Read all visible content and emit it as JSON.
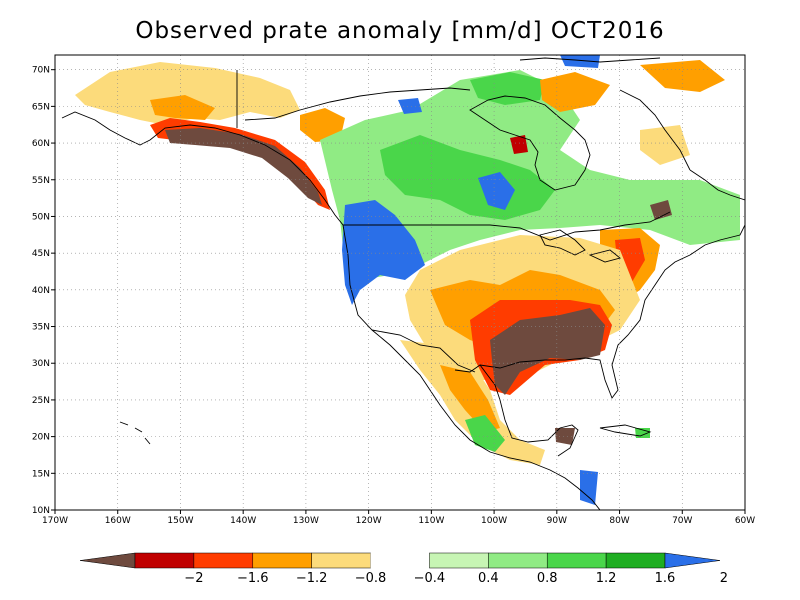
{
  "title": "Observed prate anomaly [mm/d] OCT2016",
  "map": {
    "lon_labels": [
      "170W",
      "160W",
      "150W",
      "140W",
      "130W",
      "120W",
      "110W",
      "100W",
      "90W",
      "80W",
      "70W",
      "60W"
    ],
    "lat_labels": [
      "70N",
      "65N",
      "60N",
      "55N",
      "50N",
      "45N",
      "40N",
      "35N",
      "30N",
      "25N",
      "20N",
      "15N",
      "10N"
    ],
    "lon_range": [
      -170,
      -60
    ],
    "lat_range": [
      10,
      72
    ],
    "grid": "dotted"
  },
  "colorbar": {
    "labels": [
      "−2",
      "−1.6",
      "−1.2",
      "−0.8",
      "−0.4",
      "0.4",
      "0.8",
      "1.2",
      "1.6",
      "2"
    ],
    "colors": [
      "#6e4a3e",
      "#c00000",
      "#ff3c00",
      "#ff9f00",
      "#fcdb7b",
      "#ffffff",
      "#c7f5b4",
      "#90eb84",
      "#4ad64a",
      "#1fae22",
      "#2a6fe8"
    ]
  }
}
